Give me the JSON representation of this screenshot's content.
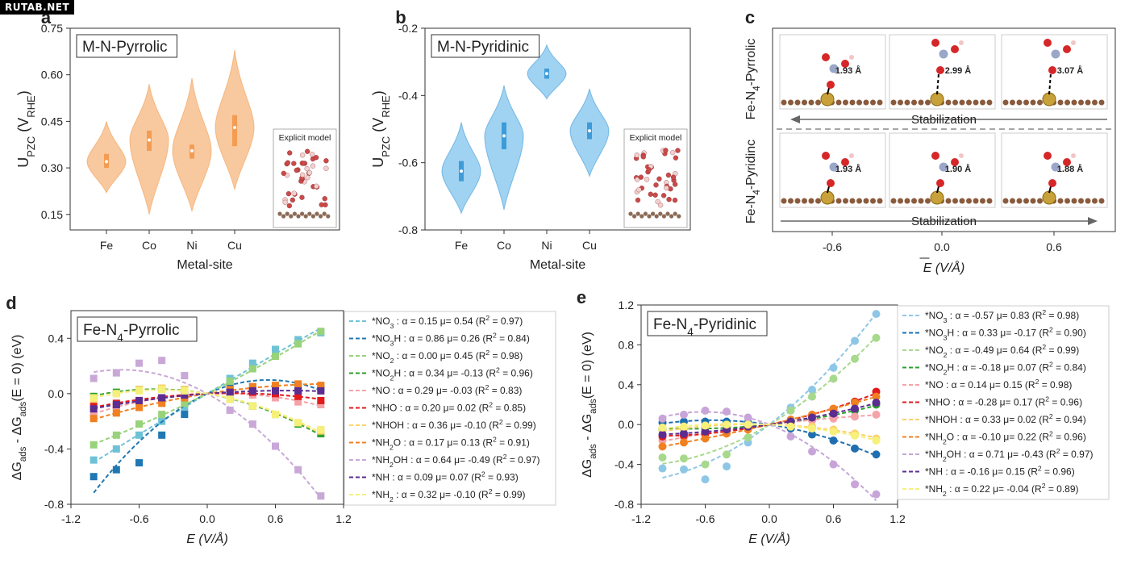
{
  "watermark": "RUTAB.NET",
  "panel_labels": {
    "a": "a",
    "b": "b",
    "c": "c",
    "d": "d",
    "e": "e"
  },
  "chart_data": [
    {
      "id": "a",
      "type": "violin",
      "title": "M-N-Pyrrolic",
      "xlabel": "Metal-site",
      "ylabel": "U_PZC (V_RHE)",
      "categories": [
        "Fe",
        "Co",
        "Ni",
        "Cu"
      ],
      "ylim": [
        0.1,
        0.75
      ],
      "yticks": [
        "0.75",
        "0.60",
        "0.45",
        "0.30",
        "0.15"
      ],
      "color": "#f7c08e",
      "box_color": "#f39c52",
      "inset_label": "Explicit model",
      "violins": [
        {
          "median": 0.32,
          "q1": 0.3,
          "q3": 0.345,
          "min": 0.22,
          "max": 0.45
        },
        {
          "median": 0.39,
          "q1": 0.355,
          "q3": 0.42,
          "min": 0.15,
          "max": 0.57
        },
        {
          "median": 0.355,
          "q1": 0.33,
          "q3": 0.375,
          "min": 0.16,
          "max": 0.59
        },
        {
          "median": 0.43,
          "q1": 0.37,
          "q3": 0.47,
          "min": 0.23,
          "max": 0.68
        }
      ]
    },
    {
      "id": "b",
      "type": "violin",
      "title": "M-N-Pyridinic",
      "xlabel": "Metal-site",
      "ylabel": "U_PZC (V_RHE)",
      "categories": [
        "Fe",
        "Co",
        "Ni",
        "Cu"
      ],
      "ylim": [
        -0.8,
        -0.2
      ],
      "yticks": [
        "-0.2",
        "-0.4",
        "-0.6",
        "-0.8"
      ],
      "color": "#8fcaf0",
      "box_color": "#3d9bd8",
      "inset_label": "Explicit model",
      "violins": [
        {
          "median": -0.625,
          "q1": -0.655,
          "q3": -0.595,
          "min": -0.75,
          "max": -0.48
        },
        {
          "median": -0.52,
          "q1": -0.56,
          "q3": -0.48,
          "min": -0.74,
          "max": -0.37
        },
        {
          "median": -0.335,
          "q1": -0.35,
          "q3": -0.32,
          "min": -0.41,
          "max": -0.25
        },
        {
          "median": -0.505,
          "q1": -0.53,
          "q3": -0.48,
          "min": -0.64,
          "max": -0.38
        }
      ]
    },
    {
      "id": "c",
      "type": "schematic",
      "ylabel_top": "Fe-N4-Pyrrolic",
      "ylabel_bottom": "Fe-N4-Pyridinc",
      "xlabel": "E (V/Å)",
      "xticks": [
        "-0.6",
        "0.0",
        "0.6"
      ],
      "arrow_text": "Stabilization",
      "top_distances": [
        "1.93 Å",
        "2.99 Å",
        "3.07 Å"
      ],
      "bottom_distances": [
        "1.93 Å",
        "1.90 Å",
        "1.88 Å"
      ]
    },
    {
      "id": "d",
      "type": "scatter",
      "title": "Fe-N4-Pyrrolic",
      "xlabel": "E (V/Å)",
      "ylabel": "ΔG_ads - ΔG_ads(E = 0) (eV)",
      "xlim": [
        -1.2,
        1.2
      ],
      "ylim": [
        -0.8,
        0.6
      ],
      "xticks": [
        "-1.2",
        "-0.6",
        "0.0",
        "0.6",
        "1.2"
      ],
      "yticks": [
        "0.4",
        "0.0",
        "-0.4",
        "-0.8"
      ],
      "marker": "square",
      "x": [
        -1.0,
        -0.8,
        -0.6,
        -0.4,
        -0.2,
        0,
        0.2,
        0.4,
        0.6,
        0.8,
        1.0
      ],
      "series": [
        {
          "name": "*NO3",
          "alpha": 0.15,
          "mu": 0.54,
          "r2": 0.97,
          "legend": "*NO3 : α = 0.15 μ= 0.54 (R2 = 0.97)",
          "color": "#6fc2d6",
          "values": [
            -0.48,
            -0.4,
            -0.3,
            -0.2,
            -0.1,
            0,
            0.11,
            0.22,
            0.32,
            0.39,
            0.44
          ]
        },
        {
          "name": "*NO3H",
          "alpha": 0.86,
          "mu": 0.26,
          "r2": 0.84,
          "legend": "*NO3H : α = 0.86 μ= 0.26 (R2 = 0.84)",
          "color": "#1f78b4",
          "values": [
            -0.6,
            -0.55,
            -0.5,
            -0.3,
            -0.15,
            0,
            0.05,
            0.05,
            0.05,
            0.05,
            0.04
          ]
        },
        {
          "name": "*NO2",
          "alpha": 0.0,
          "mu": 0.45,
          "r2": 0.98,
          "legend": "*NO2 : α = 0.00 μ= 0.45 (R2 = 0.98)",
          "color": "#98d27a",
          "values": [
            -0.37,
            -0.3,
            -0.22,
            -0.15,
            -0.07,
            0,
            0.09,
            0.18,
            0.27,
            0.36,
            0.45
          ]
        },
        {
          "name": "*NO2H",
          "alpha": 0.34,
          "mu": -0.13,
          "r2": 0.96,
          "legend": "*NO2H : α = 0.34 μ= -0.13 (R2 = 0.96)",
          "color": "#2ca02c",
          "values": [
            -0.02,
            0.01,
            0.03,
            0.04,
            0.03,
            0,
            -0.04,
            -0.09,
            -0.15,
            -0.22,
            -0.29
          ]
        },
        {
          "name": "*NO",
          "alpha": 0.29,
          "mu": -0.03,
          "r2": 0.83,
          "legend": "*NO : α = 0.29 μ= -0.03 (R2 = 0.83)",
          "color": "#f4a3a8",
          "values": [
            -0.14,
            -0.1,
            -0.06,
            -0.04,
            -0.02,
            0,
            0.0,
            -0.01,
            -0.03,
            -0.06,
            -0.08
          ]
        },
        {
          "name": "*NHO",
          "alpha": 0.2,
          "mu": 0.02,
          "r2": 0.85,
          "legend": "*NHO : α = 0.20 μ= 0.02 (R2 = 0.85)",
          "color": "#e31a1c",
          "values": [
            -0.09,
            -0.07,
            -0.05,
            -0.03,
            -0.01,
            0,
            0.01,
            0.01,
            0.0,
            -0.02,
            -0.05
          ]
        },
        {
          "name": "*NHOH",
          "alpha": 0.36,
          "mu": -0.1,
          "r2": 0.99,
          "legend": "*NHOH : α = 0.36 μ= -0.10 (R2 = 0.99)",
          "color": "#fdd36b",
          "values": [
            -0.04,
            0.0,
            0.03,
            0.04,
            0.03,
            0,
            -0.04,
            -0.09,
            -0.15,
            -0.21,
            -0.27
          ]
        },
        {
          "name": "*NH2O",
          "alpha": 0.17,
          "mu": 0.13,
          "r2": 0.91,
          "legend": "*NH2O : α = 0.17 μ= 0.13 (R2 = 0.91)",
          "color": "#f08020",
          "values": [
            -0.18,
            -0.14,
            -0.1,
            -0.07,
            -0.03,
            0,
            0.03,
            0.05,
            0.06,
            0.07,
            0.06
          ]
        },
        {
          "name": "*NH2OH",
          "alpha": 0.64,
          "mu": -0.49,
          "r2": 0.97,
          "legend": "*NH2OH : α = 0.64 μ= -0.49 (R2 = 0.97)",
          "color": "#c9a8d8",
          "values": [
            0.11,
            0.15,
            0.22,
            0.24,
            0.13,
            0,
            -0.12,
            -0.22,
            -0.38,
            -0.55,
            -0.74
          ]
        },
        {
          "name": "*NH",
          "alpha": 0.09,
          "mu": 0.07,
          "r2": 0.93,
          "legend": "*NH : α = 0.09 μ= 0.07 (R2 = 0.93)",
          "color": "#5c2d91",
          "values": [
            -0.11,
            -0.08,
            -0.05,
            -0.03,
            -0.01,
            0,
            0.01,
            0.02,
            0.02,
            0.02,
            0.02
          ]
        },
        {
          "name": "*NH2",
          "alpha": 0.32,
          "mu": -0.1,
          "r2": 0.99,
          "legend": "*NH2 : α = 0.32 μ= -0.10 (R2 = 0.99)",
          "color": "#f5f07a",
          "values": [
            -0.03,
            0.0,
            0.02,
            0.03,
            0.02,
            0,
            -0.04,
            -0.09,
            -0.15,
            -0.21,
            -0.26
          ]
        }
      ]
    },
    {
      "id": "e",
      "type": "scatter",
      "title": "Fe-N4-Pyridinic",
      "xlabel": "E (V/Å)",
      "ylabel": "ΔG_ads - ΔG_ads(E = 0) (eV)",
      "xlim": [
        -1.2,
        1.2
      ],
      "ylim": [
        -0.8,
        1.2
      ],
      "xticks": [
        "-1.2",
        "-0.6",
        "0.0",
        "0.6",
        "1.2"
      ],
      "yticks": [
        "1.2",
        "0.8",
        "0.4",
        "0.0",
        "-0.4",
        "-0.8"
      ],
      "marker": "circle",
      "x": [
        -1.0,
        -0.8,
        -0.6,
        -0.4,
        -0.2,
        0,
        0.2,
        0.4,
        0.6,
        0.8,
        1.0
      ],
      "series": [
        {
          "name": "*NO3",
          "alpha": -0.57,
          "mu": 0.83,
          "r2": 0.98,
          "legend": "*NO3 : α = -0.57 μ= 0.83 (R2 = 0.98)",
          "color": "#8ec7e6",
          "values": [
            -0.44,
            -0.45,
            -0.55,
            -0.42,
            -0.18,
            0,
            0.17,
            0.35,
            0.57,
            0.84,
            1.11
          ]
        },
        {
          "name": "*NO3H",
          "alpha": 0.33,
          "mu": -0.17,
          "r2": 0.9,
          "legend": "*NO3H : α = 0.33 μ= -0.17 (R2 = 0.90)",
          "color": "#1f6fb0",
          "values": [
            0.02,
            0.03,
            0.03,
            0.03,
            0.02,
            0,
            -0.04,
            -0.1,
            -0.16,
            -0.24,
            -0.3
          ]
        },
        {
          "name": "*NO2",
          "alpha": -0.49,
          "mu": 0.64,
          "r2": 0.99,
          "legend": "*NO2 : α = -0.49 μ= 0.64 (R2 = 0.99)",
          "color": "#a7d98c",
          "values": [
            -0.33,
            -0.34,
            -0.4,
            -0.3,
            -0.13,
            0,
            0.14,
            0.28,
            0.46,
            0.66,
            0.87
          ]
        },
        {
          "name": "*NO2H",
          "alpha": -0.18,
          "mu": 0.07,
          "r2": 0.84,
          "legend": "*NO2H : α = -0.18 μ= 0.07 (R2 = 0.84)",
          "color": "#2ca02c",
          "values": [
            -0.05,
            -0.04,
            -0.03,
            -0.02,
            -0.01,
            0,
            0.02,
            0.05,
            0.09,
            0.14,
            0.2
          ]
        },
        {
          "name": "*NO",
          "alpha": 0.14,
          "mu": 0.15,
          "r2": 0.98,
          "legend": "*NO : α = 0.14 μ= 0.15 (R2 = 0.98)",
          "color": "#f4a3a8",
          "values": [
            -0.16,
            -0.13,
            -0.1,
            -0.07,
            -0.03,
            0,
            0.02,
            0.04,
            0.06,
            0.08,
            0.1
          ]
        },
        {
          "name": "*NHO",
          "alpha": -0.28,
          "mu": 0.17,
          "r2": 0.96,
          "legend": "*NHO : α = -0.28 μ= 0.17 (R2 = 0.96)",
          "color": "#e31a1c",
          "values": [
            -0.12,
            -0.11,
            -0.09,
            -0.06,
            -0.03,
            0,
            0.04,
            0.09,
            0.15,
            0.23,
            0.33
          ]
        },
        {
          "name": "*NHOH",
          "alpha": 0.33,
          "mu": 0.02,
          "r2": 0.94,
          "legend": "*NHOH : α = 0.33 μ= 0.02 (R2 = 0.94)",
          "color": "#fcd06a",
          "values": [
            -0.06,
            -0.04,
            -0.02,
            -0.01,
            0.0,
            0,
            0.0,
            -0.02,
            -0.05,
            -0.09,
            -0.14
          ]
        },
        {
          "name": "*NH2O",
          "alpha": -0.1,
          "mu": 0.22,
          "r2": 0.96,
          "legend": "*NH2O : α = -0.10 μ= 0.22 (R2 = 0.96)",
          "color": "#f08020",
          "values": [
            -0.22,
            -0.18,
            -0.14,
            -0.09,
            -0.05,
            0,
            0.05,
            0.1,
            0.16,
            0.22,
            0.28
          ]
        },
        {
          "name": "*NH2OH",
          "alpha": 0.71,
          "mu": -0.43,
          "r2": 0.97,
          "legend": "*NH2OH : α = 0.71 μ= -0.43 (R2 = 0.97)",
          "color": "#c8a5d8",
          "values": [
            0.06,
            0.1,
            0.14,
            0.13,
            0.07,
            0,
            -0.12,
            -0.27,
            -0.4,
            -0.6,
            -0.7
          ]
        },
        {
          "name": "*NH",
          "alpha": -0.16,
          "mu": 0.15,
          "r2": 0.96,
          "legend": "*NH : α = -0.16 μ= 0.15 (R2 = 0.96)",
          "color": "#5c2d91",
          "values": [
            -0.1,
            -0.09,
            -0.07,
            -0.05,
            -0.02,
            0,
            0.03,
            0.07,
            0.11,
            0.16,
            0.22
          ]
        },
        {
          "name": "*NH2",
          "alpha": 0.22,
          "mu": -0.04,
          "r2": 0.89,
          "legend": "*NH2 : α = 0.22 μ= -0.04 (R2 = 0.89)",
          "color": "#f7f07a",
          "values": [
            -0.03,
            -0.02,
            -0.01,
            0.0,
            0.0,
            0,
            -0.02,
            -0.04,
            -0.07,
            -0.11,
            -0.16
          ]
        }
      ]
    }
  ]
}
